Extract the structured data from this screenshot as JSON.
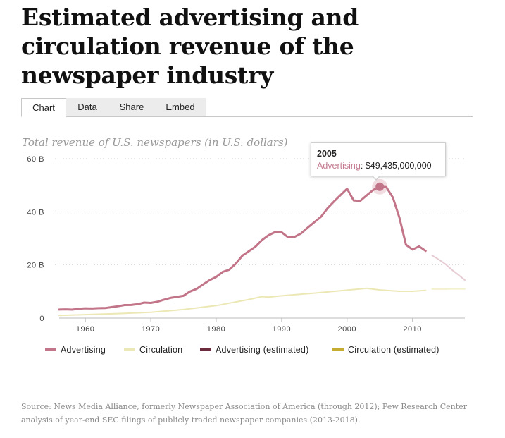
{
  "page": {
    "title": "Estimated advertising and circulation revenue of the newspaper industry",
    "tabs": [
      {
        "label": "Chart",
        "active": true
      },
      {
        "label": "Data",
        "active": false
      },
      {
        "label": "Share",
        "active": false
      },
      {
        "label": "Embed",
        "active": false
      }
    ],
    "source": "Source: News Media Alliance, formerly Newspaper Association of America (through 2012); Pew Research Center analysis of year-end SEC filings of publicly traded newspaper companies (2013-2018)."
  },
  "tooltip": {
    "year": "2005",
    "series": "Advertising",
    "value": "$49,435,000,000"
  },
  "colors": {
    "advertising": "#c27488",
    "circulation": "#ece8b6",
    "advertising_estimated": "#e6cbd2",
    "circulation_estimated": "#f4f1cf",
    "legend_advertising_estimated": "#6b2c3e",
    "legend_circulation_estimated": "#c4ad30",
    "gridline": "#d6d6d6",
    "axis_label": "#444444"
  },
  "chart_data": {
    "type": "line",
    "subtitle": "Total revenue of U.S. newspapers (in U.S. dollars)",
    "xlim": [
      1956,
      2018
    ],
    "ylim": [
      0,
      60000000000
    ],
    "x_ticks": [
      1960,
      1970,
      1980,
      1990,
      2000,
      2010
    ],
    "y_ticks": [
      {
        "value": 0,
        "label": "0"
      },
      {
        "value": 20000000000,
        "label": "20 B"
      },
      {
        "value": 40000000000,
        "label": "40 B"
      },
      {
        "value": 60000000000,
        "label": "60 B"
      }
    ],
    "grid": true,
    "legend_position": "bottom",
    "series": [
      {
        "name": "Advertising",
        "key": "advertising",
        "x": [
          1956,
          1957,
          1958,
          1959,
          1960,
          1961,
          1962,
          1963,
          1964,
          1965,
          1966,
          1967,
          1968,
          1969,
          1970,
          1971,
          1972,
          1973,
          1974,
          1975,
          1976,
          1977,
          1978,
          1979,
          1980,
          1981,
          1982,
          1983,
          1984,
          1985,
          1986,
          1987,
          1988,
          1989,
          1990,
          1991,
          1992,
          1993,
          1994,
          1995,
          1996,
          1997,
          1998,
          1999,
          2000,
          2001,
          2002,
          2003,
          2004,
          2005,
          2006,
          2007,
          2008,
          2009,
          2010,
          2011,
          2012
        ],
        "values": [
          3220000000,
          3280000000,
          3190000000,
          3530000000,
          3700000000,
          3610000000,
          3740000000,
          3780000000,
          4120000000,
          4460000000,
          4900000000,
          4950000000,
          5230000000,
          5850000000,
          5700000000,
          6170000000,
          6940000000,
          7600000000,
          8000000000,
          8400000000,
          10000000000,
          11000000000,
          12700000000,
          14300000000,
          15500000000,
          17400000000,
          18200000000,
          20500000000,
          23500000000,
          25200000000,
          26900000000,
          29400000000,
          31200000000,
          32400000000,
          32300000000,
          30400000000,
          30600000000,
          31900000000,
          34100000000,
          36100000000,
          38100000000,
          41300000000,
          43900000000,
          46300000000,
          48700000000,
          44300000000,
          44100000000,
          46200000000,
          48200000000,
          49435000000,
          49300000000,
          45400000000,
          37800000000,
          27600000000,
          25800000000,
          27000000000,
          25300000000
        ]
      },
      {
        "name": "Circulation",
        "key": "circulation",
        "x": [
          1956,
          1960,
          1965,
          1970,
          1975,
          1980,
          1985,
          1987,
          1988,
          1990,
          1993,
          1995,
          2000,
          2003,
          2005,
          2008,
          2010,
          2012
        ],
        "values": [
          1000000000,
          1300000000,
          1700000000,
          2200000000,
          3200000000,
          4700000000,
          7000000000,
          8100000000,
          7900000000,
          8400000000,
          9000000000,
          9400000000,
          10500000000,
          11200000000,
          10600000000,
          10100000000,
          10100000000,
          10400000000
        ]
      },
      {
        "name": "Advertising (estimated)",
        "key": "advertising_estimated",
        "x": [
          2013,
          2014,
          2015,
          2016,
          2017,
          2018
        ],
        "values": [
          23600000000,
          22100000000,
          20400000000,
          18200000000,
          16300000000,
          14300000000
        ]
      },
      {
        "name": "Circulation (estimated)",
        "key": "circulation_estimated",
        "x": [
          2013,
          2014,
          2015,
          2016,
          2017,
          2018
        ],
        "values": [
          10900000000,
          10900000000,
          10900000000,
          11000000000,
          11000000000,
          11000000000
        ]
      }
    ]
  }
}
